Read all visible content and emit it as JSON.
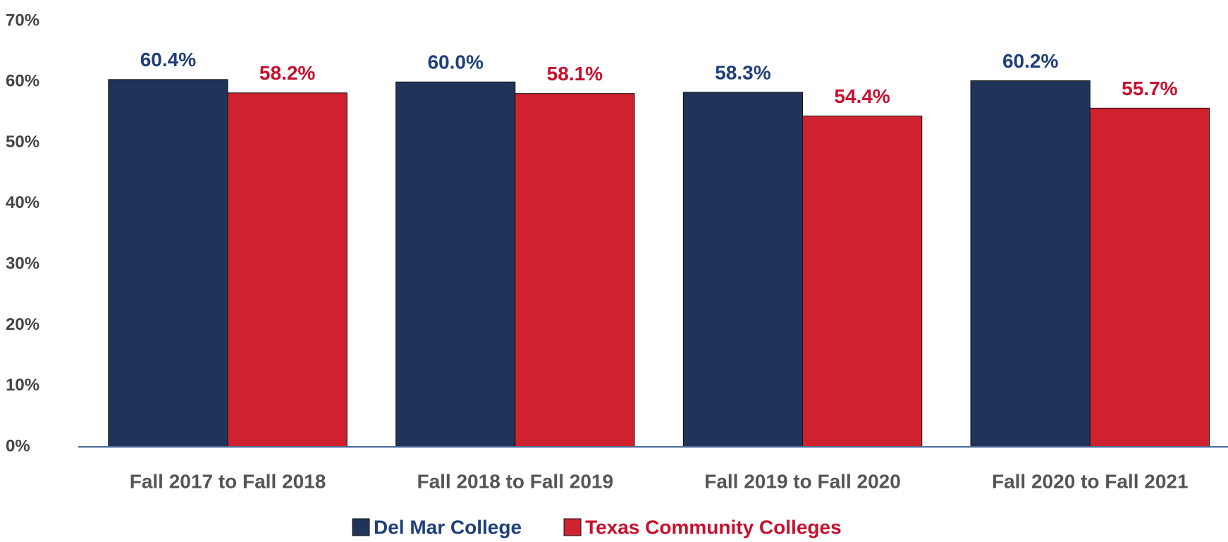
{
  "chart_data": {
    "type": "bar",
    "categories": [
      "Fall 2017 to Fall 2018",
      "Fall 2018 to Fall 2019",
      "Fall 2019 to Fall 2020",
      "Fall 2020 to Fall 2021"
    ],
    "series": [
      {
        "name": "Del Mar College",
        "color": "#1f3458",
        "label_color": "#1f3f7a",
        "values": [
          60.4,
          60.0,
          58.3,
          60.2
        ],
        "value_labels": [
          "60.4%",
          "60.0%",
          "58.3%",
          "60.2%"
        ]
      },
      {
        "name": "Texas Community Colleges",
        "color": "#d0222e",
        "label_color": "#c8102e",
        "values": [
          58.2,
          58.1,
          54.4,
          55.7
        ],
        "value_labels": [
          "58.2%",
          "58.1%",
          "54.4%",
          "55.7%"
        ]
      }
    ],
    "ylim": [
      0,
      70
    ],
    "yticks": [
      {
        "value": 0,
        "label": "0%"
      },
      {
        "value": 10,
        "label": "10%"
      },
      {
        "value": 20,
        "label": "20%"
      },
      {
        "value": 30,
        "label": "30%"
      },
      {
        "value": 40,
        "label": "40%"
      },
      {
        "value": 50,
        "label": "50%"
      },
      {
        "value": 60,
        "label": "60%"
      },
      {
        "value": 70,
        "label": "70%"
      }
    ],
    "grid": false,
    "legend": "bottom"
  }
}
